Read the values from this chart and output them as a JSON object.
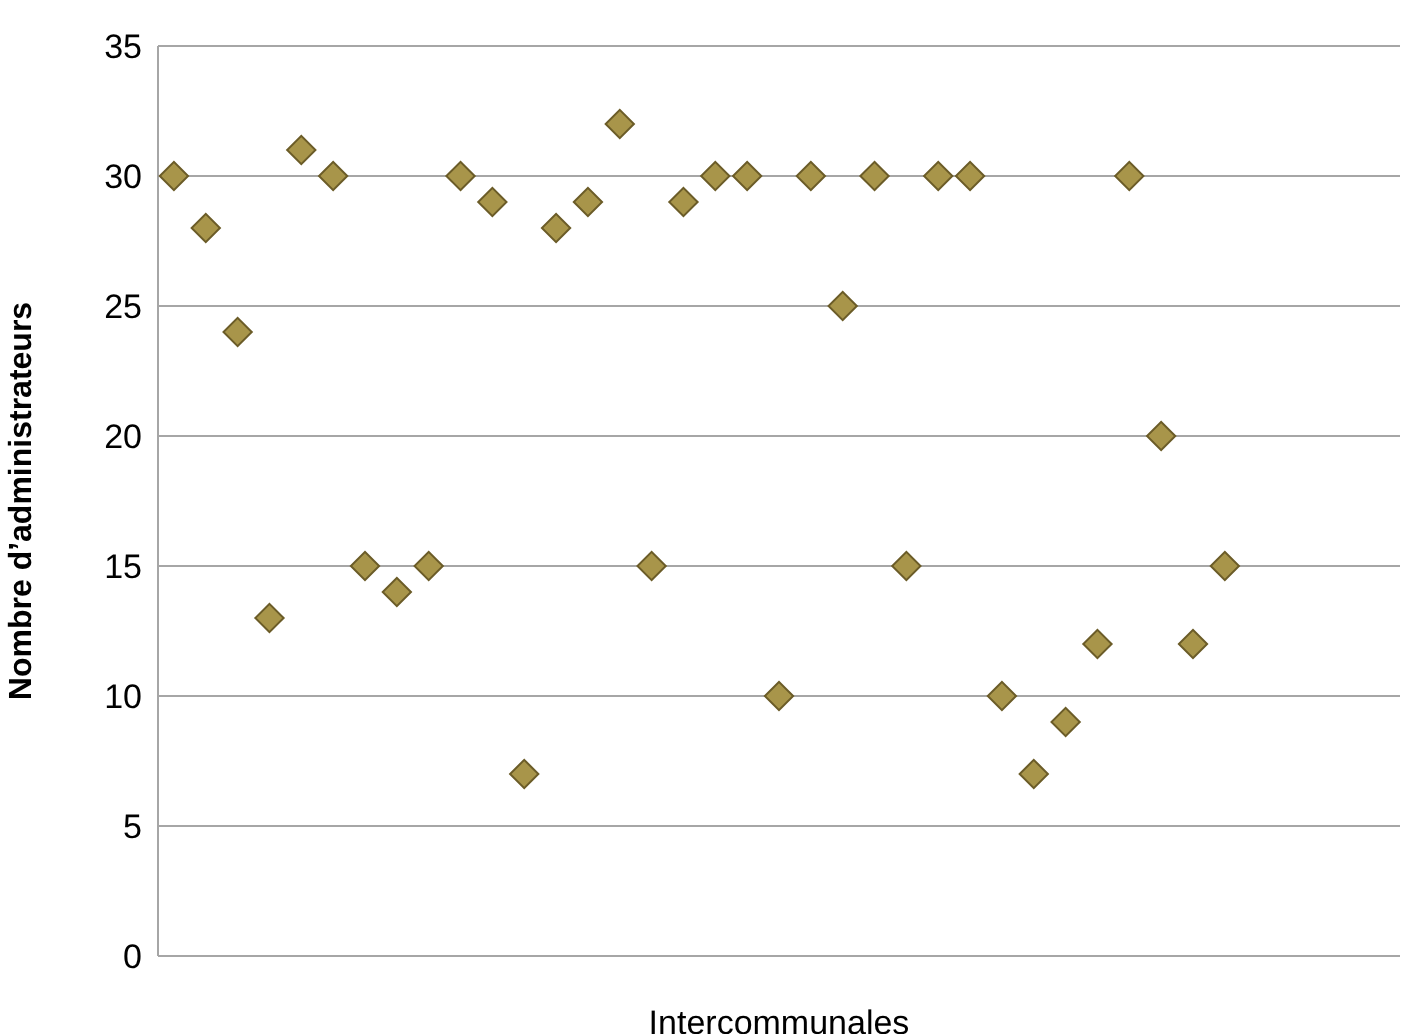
{
  "chart_data": {
    "type": "scatter",
    "xlabel": "Intercommunales",
    "ylabel": "Nombre d’administrateurs",
    "categories": [
      null,
      null,
      null,
      null,
      null,
      null,
      null,
      null,
      null,
      null,
      null,
      null,
      null,
      null,
      null,
      null,
      null,
      null,
      null,
      null,
      null,
      null,
      null,
      null,
      null,
      null,
      null,
      null,
      null,
      null,
      null,
      null,
      null,
      null,
      null,
      null,
      null,
      null,
      null
    ],
    "series": [
      {
        "color": "#a8954a",
        "values": [
          30,
          28,
          24,
          13,
          31,
          30,
          15,
          14,
          15,
          30,
          29,
          7,
          28,
          29,
          32,
          15,
          29,
          30,
          30,
          10,
          30,
          25,
          30,
          15,
          30,
          30,
          10,
          7,
          9,
          12,
          30,
          20,
          12,
          15,
          null,
          null,
          null,
          null,
          null
        ]
      }
    ],
    "ylim": [
      0,
      35
    ],
    "yticks": [
      0,
      5,
      10,
      15,
      20,
      25,
      30,
      35
    ],
    "grid": "y",
    "marker": "diamond",
    "legend": false
  }
}
